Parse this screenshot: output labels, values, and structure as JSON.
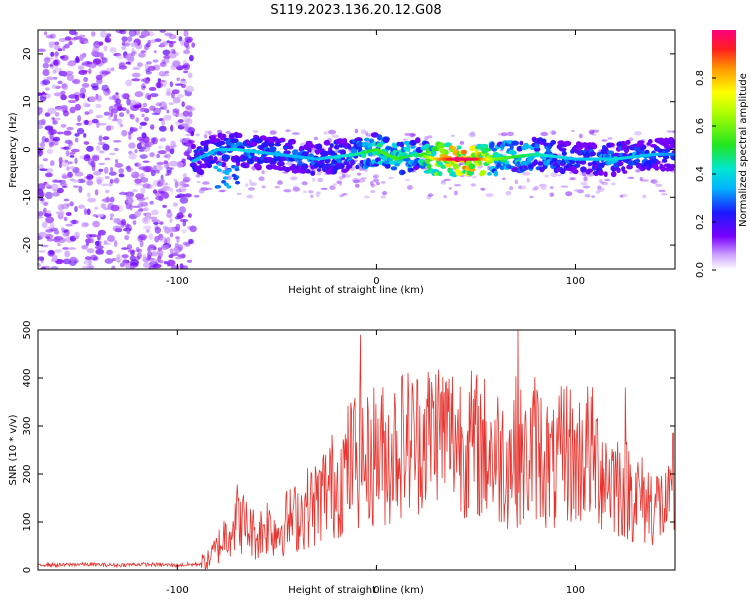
{
  "title": "S119.2023.136.20.12.G08",
  "colors": {
    "axis": "#000000",
    "snr_line": "#e8322d",
    "noise": "#8a2be2"
  },
  "chart_data": [
    {
      "type": "heatmap",
      "xlabel": "Height of straight line (km)",
      "ylabel": "Frequency (Hz)",
      "xlim": [
        -170,
        150
      ],
      "ylim": [
        -25,
        25
      ],
      "x_ticks": [
        -100,
        0,
        100
      ],
      "y_ticks": [
        -20,
        -10,
        0,
        10,
        20
      ],
      "colorbar": {
        "label": "Normalized spectral amplitude",
        "range": [
          0,
          1
        ],
        "ticks": [
          0.0,
          0.2,
          0.4,
          0.6,
          0.8
        ],
        "colormap": "rainbow (white-violet-blue-cyan-green-yellow-orange-red-magenta)"
      },
      "grid": false,
      "signal_trace": [
        {
          "x": -90,
          "freq": -2,
          "amplitude": 0.35
        },
        {
          "x": -80,
          "freq": 0,
          "amplitude": 0.35
        },
        {
          "x": -70,
          "freq": 0,
          "amplitude": 0.4
        },
        {
          "x": -50,
          "freq": -1,
          "amplitude": 0.35
        },
        {
          "x": -30,
          "freq": -2,
          "amplitude": 0.35
        },
        {
          "x": -10,
          "freq": -1,
          "amplitude": 0.45
        },
        {
          "x": 0,
          "freq": 0,
          "amplitude": 0.55
        },
        {
          "x": 10,
          "freq": -2,
          "amplitude": 0.55
        },
        {
          "x": 20,
          "freq": -1,
          "amplitude": 0.45
        },
        {
          "x": 30,
          "freq": -2,
          "amplitude": 0.8
        },
        {
          "x": 40,
          "freq": -2,
          "amplitude": 1.0
        },
        {
          "x": 50,
          "freq": -2,
          "amplitude": 0.95
        },
        {
          "x": 60,
          "freq": -2,
          "amplitude": 0.6
        },
        {
          "x": 80,
          "freq": -1,
          "amplitude": 0.45
        },
        {
          "x": 100,
          "freq": -2,
          "amplitude": 0.35
        },
        {
          "x": 120,
          "freq": -2,
          "amplitude": 0.4
        },
        {
          "x": 140,
          "freq": -1,
          "amplitude": 0.35
        },
        {
          "x": 150,
          "freq": -1,
          "amplitude": 0.3
        }
      ]
    },
    {
      "type": "line",
      "xlabel": "Height of straight line (km)",
      "ylabel": "SNR (10 * v/v)",
      "xlim": [
        -170,
        150
      ],
      "ylim": [
        0,
        500
      ],
      "x_ticks": [
        -100,
        0,
        100
      ],
      "y_ticks": [
        0,
        100,
        200,
        300,
        400,
        500
      ],
      "grid": false,
      "x": [
        -170,
        -160,
        -150,
        -140,
        -130,
        -120,
        -110,
        -100,
        -90,
        -85,
        -80,
        -75,
        -70,
        -65,
        -60,
        -55,
        -50,
        -45,
        -40,
        -35,
        -30,
        -25,
        -20,
        -15,
        -10,
        -5,
        0,
        5,
        10,
        15,
        20,
        25,
        30,
        35,
        40,
        45,
        50,
        55,
        60,
        65,
        70,
        75,
        80,
        85,
        90,
        95,
        100,
        105,
        110,
        115,
        120,
        125,
        130,
        135,
        140,
        145,
        150
      ],
      "y": [
        12,
        10,
        12,
        11,
        10,
        12,
        11,
        10,
        12,
        18,
        45,
        80,
        110,
        90,
        70,
        95,
        80,
        100,
        110,
        130,
        140,
        170,
        180,
        210,
        240,
        220,
        250,
        235,
        260,
        270,
        270,
        280,
        300,
        290,
        280,
        265,
        260,
        250,
        240,
        230,
        250,
        220,
        260,
        230,
        200,
        260,
        220,
        250,
        230,
        200,
        190,
        170,
        160,
        140,
        140,
        130,
        130
      ],
      "peaks": [
        {
          "x": -8,
          "y": 490
        },
        {
          "x": 71,
          "y": 500
        },
        {
          "x": 125,
          "y": 380
        },
        {
          "x": 149,
          "y": 285
        }
      ]
    }
  ]
}
